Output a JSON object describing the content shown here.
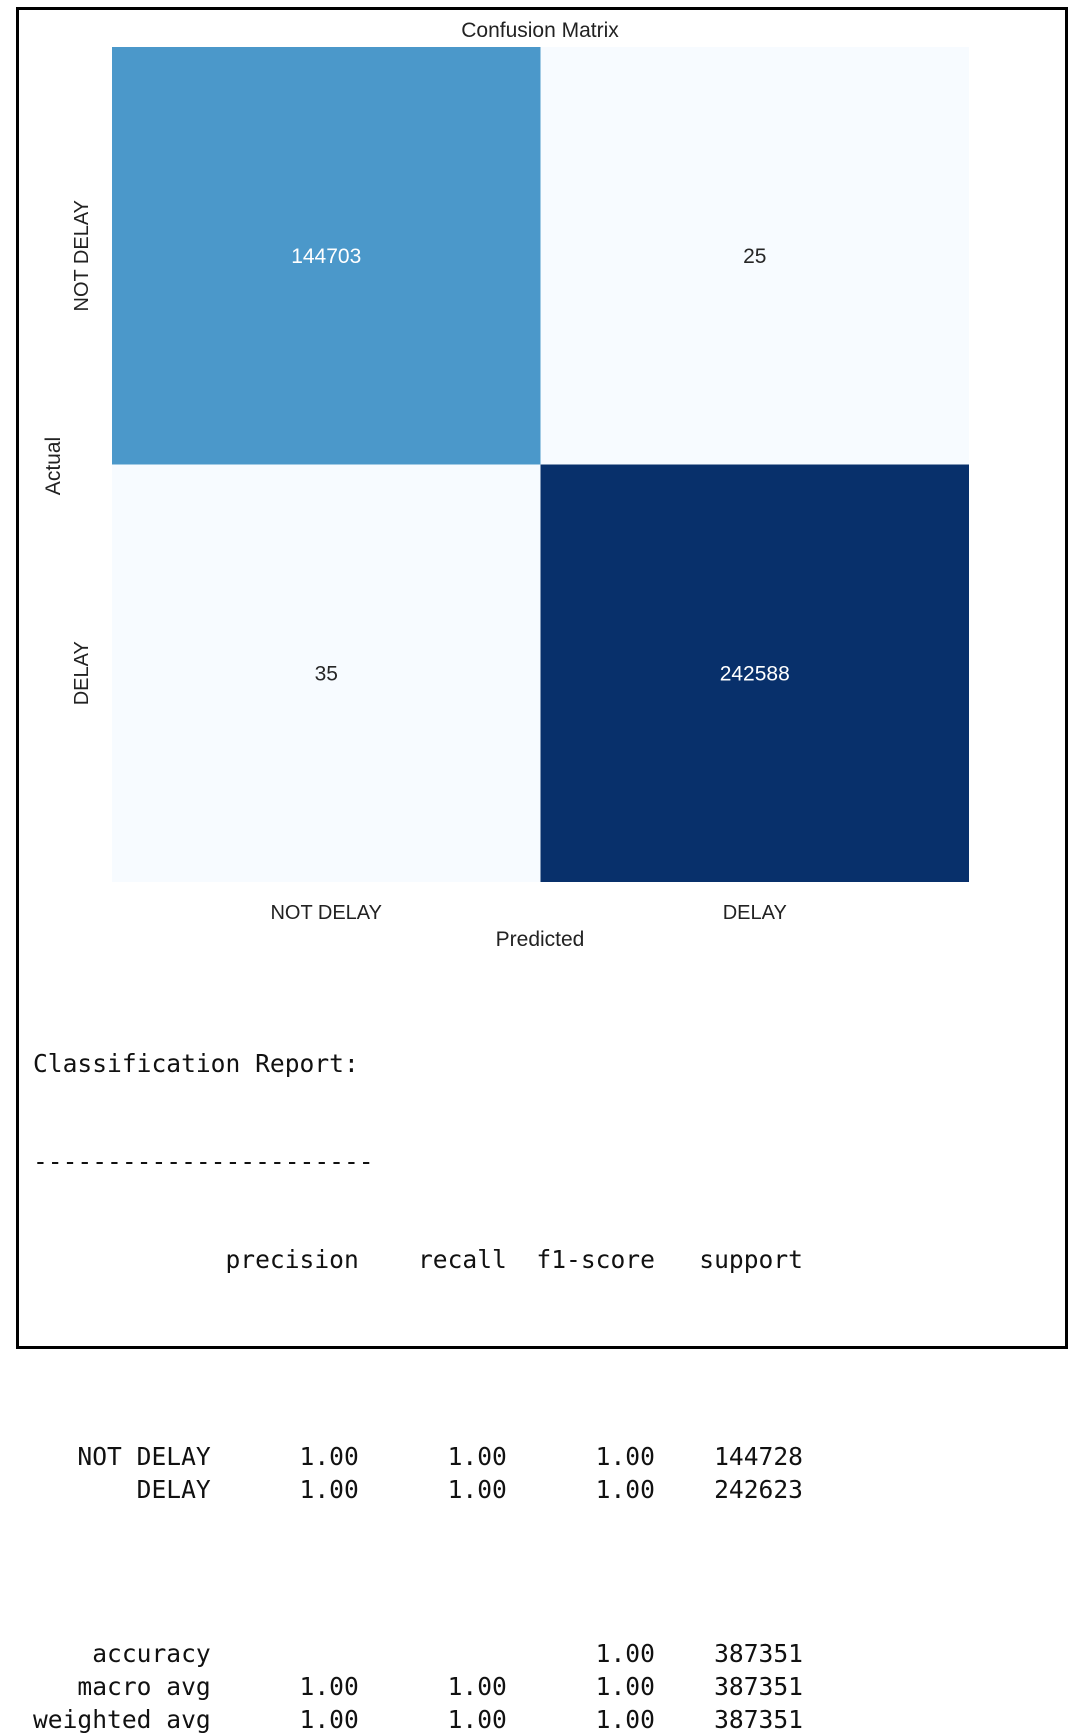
{
  "chart_data": {
    "type": "heatmap",
    "title": "Confusion Matrix",
    "xlabel": "Predicted",
    "ylabel": "Actual",
    "x_categories": [
      "NOT DELAY",
      "DELAY"
    ],
    "y_categories": [
      "NOT DELAY",
      "DELAY"
    ],
    "values": [
      [
        144703,
        25
      ],
      [
        35,
        242588
      ]
    ],
    "colormap": "Blues",
    "colorbar": false
  },
  "report": {
    "title": "Classification Report:",
    "separator": "-----------------------",
    "columns": [
      "precision",
      "recall",
      "f1-score",
      "support"
    ],
    "rows": [
      {
        "label": "NOT DELAY",
        "precision": "1.00",
        "recall": "1.00",
        "f1": "1.00",
        "support": "144728"
      },
      {
        "label": "DELAY",
        "precision": "1.00",
        "recall": "1.00",
        "f1": "1.00",
        "support": "242623"
      }
    ],
    "summary": [
      {
        "label": "accuracy",
        "precision": "",
        "recall": "",
        "f1": "1.00",
        "support": "387351"
      },
      {
        "label": "macro avg",
        "precision": "1.00",
        "recall": "1.00",
        "f1": "1.00",
        "support": "387351"
      },
      {
        "label": "weighted avg",
        "precision": "1.00",
        "recall": "1.00",
        "f1": "1.00",
        "support": "387351"
      }
    ]
  }
}
